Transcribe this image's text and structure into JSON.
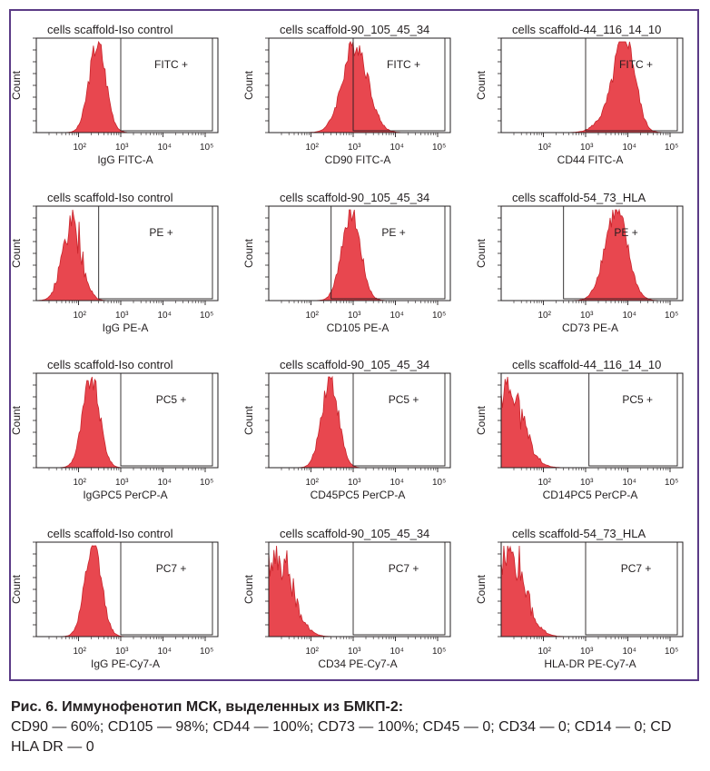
{
  "figure": {
    "caption_title": "Рис. 6. Иммунофенотип МСК, выделенных из БМКП-2:",
    "caption_text": "CD90 — 60%; CD105 — 98%; CD44 — 100%; CD73 — 100%; CD45 — 0; CD34 — 0; CD14 — 0; CD HLA DR — 0",
    "fill_color": "#e8474f",
    "line_color": "#c8242b",
    "frame_color": "#5b3b86"
  },
  "chart_data": [
    {
      "type": "area",
      "title": "cells scaffold-Iso control",
      "xlabel": "IgG FITC-A",
      "ylabel": "Count",
      "gate_label": "FITC +",
      "x_scale": "log",
      "x_ticks": [
        "10²",
        "10³",
        "10⁴",
        "10⁵"
      ],
      "xlim": [
        10,
        200000
      ],
      "gate_start": 1000,
      "series": [
        {
          "name": "",
          "mean_log10": 2.45,
          "sd_log10": 0.2
        }
      ]
    },
    {
      "type": "area",
      "title": "cells scaffold-90_105_45_34",
      "xlabel": "CD90 FITC-A",
      "ylabel": "Count",
      "gate_label": "FITC +",
      "x_scale": "log",
      "x_ticks": [
        "10²",
        "10³",
        "10⁴",
        "10⁵"
      ],
      "xlim": [
        10,
        200000
      ],
      "gate_start": 1000,
      "series": [
        {
          "name": "",
          "mean_log10": 3.05,
          "sd_log10": 0.3
        }
      ]
    },
    {
      "type": "area",
      "title": "cells scaffold-44_116_14_10",
      "xlabel": "CD44 FITC-A",
      "ylabel": "Count",
      "gate_label": "FITC +",
      "x_scale": "log",
      "x_ticks": [
        "10²",
        "10³",
        "10⁴",
        "10⁵"
      ],
      "xlim": [
        10,
        200000
      ],
      "gate_start": 1000,
      "series": [
        {
          "name": "",
          "mean_log10": 3.95,
          "sd_log10": 0.23,
          "shoulder_log10": 3.6
        }
      ]
    },
    {
      "type": "area",
      "title": "cells scaffold-Iso control",
      "xlabel": "IgG PE-A",
      "ylabel": "Count",
      "gate_label": "PE +",
      "x_scale": "log",
      "x_ticks": [
        "10²",
        "10³",
        "10⁴",
        "10⁵"
      ],
      "xlim": [
        10,
        200000
      ],
      "gate_start": 300,
      "series": [
        {
          "name": "",
          "mean_log10": 1.85,
          "sd_log10": 0.22,
          "noisy": true
        }
      ]
    },
    {
      "type": "area",
      "title": "cells scaffold-90_105_45_34",
      "xlabel": "CD105 PE-A",
      "ylabel": "Count",
      "gate_label": "PE +",
      "x_scale": "log",
      "x_ticks": [
        "10²",
        "10³",
        "10⁴",
        "10⁵"
      ],
      "xlim": [
        10,
        200000
      ],
      "gate_start": 300,
      "series": [
        {
          "name": "",
          "mean_log10": 2.95,
          "sd_log10": 0.22
        }
      ]
    },
    {
      "type": "area",
      "title": "cells scaffold-54_73_HLA",
      "xlabel": "CD73 PE-A",
      "ylabel": "Count",
      "gate_label": "PE +",
      "x_scale": "log",
      "x_ticks": [
        "10²",
        "10³",
        "10⁴",
        "10⁵"
      ],
      "xlim": [
        10,
        200000
      ],
      "gate_start": 300,
      "series": [
        {
          "name": "",
          "mean_log10": 3.72,
          "sd_log10": 0.27
        }
      ]
    },
    {
      "type": "area",
      "title": "cells scaffold-Iso control",
      "xlabel": "IgGPC5 PerCP-A",
      "ylabel": "Count",
      "gate_label": "PC5 +",
      "x_scale": "log",
      "x_ticks": [
        "10²",
        "10³",
        "10⁴",
        "10⁵"
      ],
      "xlim": [
        10,
        200000
      ],
      "gate_start": 1000,
      "series": [
        {
          "name": "",
          "mean_log10": 2.3,
          "sd_log10": 0.2
        }
      ]
    },
    {
      "type": "area",
      "title": "cells scaffold-90_105_45_34",
      "xlabel": "CD45PC5 PerCP-A",
      "ylabel": "Count",
      "gate_label": "PC5 +",
      "x_scale": "log",
      "x_ticks": [
        "10²",
        "10³",
        "10⁴",
        "10⁵"
      ],
      "xlim": [
        10,
        200000
      ],
      "gate_start": 1000,
      "series": [
        {
          "name": "",
          "mean_log10": 2.45,
          "sd_log10": 0.2
        }
      ]
    },
    {
      "type": "area",
      "title": "cells scaffold-44_116_14_10",
      "xlabel": "CD14PC5 PerCP-A",
      "ylabel": "Count",
      "gate_label": "PC5 +",
      "x_scale": "log",
      "x_ticks": [
        "10²",
        "10³",
        "10⁴",
        "10⁵"
      ],
      "xlim": [
        10,
        200000
      ],
      "gate_start": 1200,
      "series": [
        {
          "name": "",
          "mean_log10": 1.15,
          "sd_log10": 0.35,
          "noisy": true
        }
      ]
    },
    {
      "type": "area",
      "title": "cells scaffold-Iso control",
      "xlabel": "IgG PE-Cy7-A",
      "ylabel": "Count",
      "gate_label": "PC7 +",
      "x_scale": "log",
      "x_ticks": [
        "10²",
        "10³",
        "10⁴",
        "10⁵"
      ],
      "xlim": [
        10,
        200000
      ],
      "gate_start": 1000,
      "series": [
        {
          "name": "",
          "mean_log10": 2.35,
          "sd_log10": 0.2
        }
      ]
    },
    {
      "type": "area",
      "title": "cells scaffold-90_105_45_34",
      "xlabel": "CD34 PE-Cy7-A",
      "ylabel": "Count",
      "gate_label": "PC7 +",
      "x_scale": "log",
      "x_ticks": [
        "10²",
        "10³",
        "10⁴",
        "10⁵"
      ],
      "xlim": [
        10,
        200000
      ],
      "gate_start": 1000,
      "series": [
        {
          "name": "",
          "mean_log10": 1.2,
          "sd_log10": 0.35,
          "noisy": true
        }
      ]
    },
    {
      "type": "area",
      "title": "cells scaffold-54_73_HLA",
      "xlabel": "HLA-DR PE-Cy7-A",
      "ylabel": "Count",
      "gate_label": "PC7 +",
      "x_scale": "log",
      "x_ticks": [
        "10²",
        "10³",
        "10⁴",
        "10⁵"
      ],
      "xlim": [
        10,
        200000
      ],
      "gate_start": 1000,
      "series": [
        {
          "name": "",
          "mean_log10": 1.2,
          "sd_log10": 0.35,
          "noisy": true
        }
      ]
    }
  ]
}
